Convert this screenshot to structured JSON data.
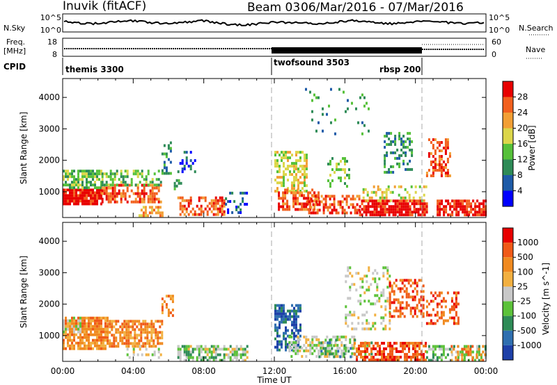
{
  "header": {
    "station": "Inuvik (fitACF)",
    "beam": "Beam 03",
    "date_range": "06/Mar/2016 - 07/Mar/2016"
  },
  "summary": {
    "nsky_label": "N.Sky",
    "nsearch_label": "N.Search",
    "freq_label": "Freq.",
    "freq_unit": "[MHz]",
    "nave_label": "Nave",
    "cpid_label": "CPID",
    "nsky_ticks": [
      "10^5",
      "10^0"
    ],
    "nsearch_ticks": [
      "10^5",
      "10^0"
    ],
    "freq_ticks": [
      "18",
      "8"
    ],
    "nave_ticks": [
      "60",
      "0"
    ],
    "programs": [
      {
        "name": "themis 3300",
        "start_hour": 0
      },
      {
        "name": "twofsound 3503",
        "start_hour": 12
      },
      {
        "name": "rbsp 200",
        "start_hour": 20.6
      }
    ]
  },
  "chart_data": [
    {
      "type": "heatmap",
      "quantity": "Power",
      "ylabel": "Slant Range [km]",
      "xlabel": "Time UT",
      "xlim": [
        0,
        24
      ],
      "ylim": [
        180,
        4600
      ],
      "x_ticks": [
        "00:00",
        "04:00",
        "08:00",
        "12:00",
        "16:00",
        "20:00",
        "00:00"
      ],
      "y_ticks": [
        1000,
        2000,
        3000,
        4000
      ],
      "colorbar": {
        "label": "Power [dB]",
        "ticks": [
          "4",
          "8",
          "12",
          "16",
          "20",
          "24",
          "28"
        ],
        "colors": [
          "#0000ff",
          "#1e5ba8",
          "#2e8b57",
          "#56c13a",
          "#dcd64a",
          "#f29f35",
          "#f2601e",
          "#e80000"
        ]
      },
      "regions": [
        {
          "t": [
            0.0,
            2.2
          ],
          "r": [
            650,
            1100
          ],
          "level": 7,
          "density": 0.9
        },
        {
          "t": [
            0.0,
            2.2
          ],
          "r": [
            1100,
            1700
          ],
          "level": 3,
          "density": 0.75
        },
        {
          "t": [
            2.2,
            5.6
          ],
          "r": [
            700,
            1250
          ],
          "level": 6,
          "density": 0.6
        },
        {
          "t": [
            2.2,
            5.6
          ],
          "r": [
            1250,
            1700
          ],
          "level": 3,
          "density": 0.45
        },
        {
          "t": [
            4.3,
            5.7
          ],
          "r": [
            250,
            550
          ],
          "level": 5,
          "density": 0.55
        },
        {
          "t": [
            5.6,
            6.1
          ],
          "r": [
            1600,
            2600
          ],
          "level": 2,
          "density": 0.35
        },
        {
          "t": [
            6.3,
            6.7
          ],
          "r": [
            1100,
            1400
          ],
          "level": 2,
          "density": 0.35
        },
        {
          "t": [
            6.5,
            7.5
          ],
          "r": [
            1600,
            2300
          ],
          "level": 1,
          "density": 0.2
        },
        {
          "t": [
            6.5,
            9.2
          ],
          "r": [
            300,
            850
          ],
          "level": 6,
          "density": 0.55
        },
        {
          "t": [
            9.2,
            10.5
          ],
          "r": [
            300,
            1000
          ],
          "level": 1,
          "density": 0.2
        },
        {
          "t": [
            12.0,
            13.8
          ],
          "r": [
            1000,
            2300
          ],
          "level": 4,
          "density": 0.55
        },
        {
          "t": [
            12.2,
            14.5
          ],
          "r": [
            400,
            1100
          ],
          "level": 6,
          "density": 0.6
        },
        {
          "t": [
            13.8,
            16.8
          ],
          "r": [
            300,
            900
          ],
          "level": 6,
          "density": 0.55
        },
        {
          "t": [
            15.0,
            16.2
          ],
          "r": [
            1200,
            2100
          ],
          "level": 3,
          "density": 0.3
        },
        {
          "t": [
            16.8,
            20.6
          ],
          "r": [
            300,
            750
          ],
          "level": 7,
          "density": 0.8
        },
        {
          "t": [
            17.0,
            20.6
          ],
          "r": [
            750,
            1200
          ],
          "level": 4,
          "density": 0.3
        },
        {
          "t": [
            18.2,
            19.8
          ],
          "r": [
            1600,
            2900
          ],
          "level": 2,
          "density": 0.35
        },
        {
          "t": [
            20.6,
            22.0
          ],
          "r": [
            1500,
            2700
          ],
          "level": 6,
          "density": 0.4
        },
        {
          "t": [
            21.2,
            24.0
          ],
          "r": [
            300,
            750
          ],
          "level": 7,
          "density": 0.75
        },
        {
          "t": [
            13.5,
            17.5
          ],
          "r": [
            2800,
            4300
          ],
          "level": 2,
          "density": 0.06
        }
      ]
    },
    {
      "type": "heatmap",
      "quantity": "Velocity",
      "ylabel": "Slant Range [km]",
      "xlabel": "Time UT",
      "xlim": [
        0,
        24
      ],
      "ylim": [
        180,
        4600
      ],
      "x_ticks": [
        "00:00",
        "04:00",
        "08:00",
        "12:00",
        "16:00",
        "20:00",
        "00:00"
      ],
      "y_ticks": [
        1000,
        2000,
        3000,
        4000
      ],
      "colorbar": {
        "label": "Velocity [m s^-1]",
        "ticks": [
          "1000",
          "500",
          "100",
          "25",
          "-25",
          "-100",
          "-500",
          "-1000"
        ],
        "colors": [
          "#1e40a8",
          "#2f6fb0",
          "#2e8b57",
          "#5cc23a",
          "#c8c8c8",
          "#f2b040",
          "#f08a20",
          "#f05a18",
          "#e80000"
        ]
      },
      "regions": [
        {
          "t": [
            0.0,
            2.5
          ],
          "r": [
            600,
            1600
          ],
          "level": 6,
          "density": 0.85
        },
        {
          "t": [
            0.0,
            1.0
          ],
          "r": [
            1000,
            1600
          ],
          "level": 4,
          "density": 0.5
        },
        {
          "t": [
            2.5,
            5.6
          ],
          "r": [
            700,
            1500
          ],
          "level": 6,
          "density": 0.65
        },
        {
          "t": [
            3.5,
            5.6
          ],
          "r": [
            300,
            700
          ],
          "level": 4,
          "density": 0.3
        },
        {
          "t": [
            5.6,
            6.2
          ],
          "r": [
            1600,
            2300
          ],
          "level": 6,
          "density": 0.35
        },
        {
          "t": [
            6.5,
            10.5
          ],
          "r": [
            250,
            700
          ],
          "level": 3,
          "density": 0.5
        },
        {
          "t": [
            6.5,
            10.5
          ],
          "r": [
            250,
            700
          ],
          "level": 4,
          "density": 0.25
        },
        {
          "t": [
            12.0,
            13.5
          ],
          "r": [
            500,
            2000
          ],
          "level": 1,
          "density": 0.55
        },
        {
          "t": [
            12.8,
            16.5
          ],
          "r": [
            300,
            1000
          ],
          "level": 4,
          "density": 0.5
        },
        {
          "t": [
            14.5,
            17.5
          ],
          "r": [
            300,
            900
          ],
          "level": 2,
          "density": 0.35
        },
        {
          "t": [
            16.5,
            20.6
          ],
          "r": [
            250,
            800
          ],
          "level": 7,
          "density": 0.7
        },
        {
          "t": [
            16.0,
            18.5
          ],
          "r": [
            1200,
            3200
          ],
          "level": 4,
          "density": 0.25
        },
        {
          "t": [
            18.5,
            20.4
          ],
          "r": [
            1600,
            2800
          ],
          "level": 7,
          "density": 0.45
        },
        {
          "t": [
            20.6,
            22.4
          ],
          "r": [
            1400,
            2400
          ],
          "level": 7,
          "density": 0.45
        },
        {
          "t": [
            20.6,
            24.0
          ],
          "r": [
            250,
            700
          ],
          "level": 3,
          "density": 0.5
        },
        {
          "t": [
            22.0,
            24.0
          ],
          "r": [
            250,
            700
          ],
          "level": 6,
          "density": 0.35
        }
      ]
    }
  ]
}
